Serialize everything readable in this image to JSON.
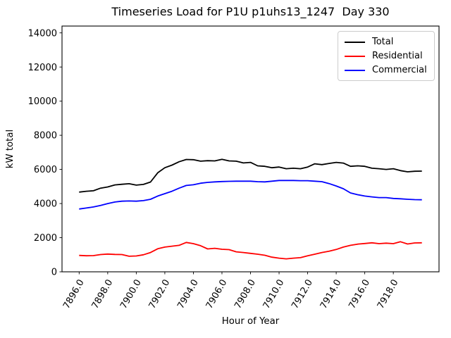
{
  "chart_data": {
    "type": "line",
    "title": "Timeseries Load for P1U p1uhs13_1247  Day 330",
    "xlabel": "Hour of Year",
    "ylabel": "kW total",
    "xlim": [
      7894.8,
      7921.2
    ],
    "ylim": [
      0,
      14400
    ],
    "grid": false,
    "legend_position": "upper right",
    "x_ticks": [
      {
        "value": 7896,
        "label": "7896.0"
      },
      {
        "value": 7898,
        "label": "7898.0"
      },
      {
        "value": 7900,
        "label": "7900.0"
      },
      {
        "value": 7902,
        "label": "7902.0"
      },
      {
        "value": 7904,
        "label": "7904.0"
      },
      {
        "value": 7906,
        "label": "7906.0"
      },
      {
        "value": 7908,
        "label": "7908.0"
      },
      {
        "value": 7910,
        "label": "7910.0"
      },
      {
        "value": 7912,
        "label": "7912.0"
      },
      {
        "value": 7914,
        "label": "7914.0"
      },
      {
        "value": 7916,
        "label": "7916.0"
      },
      {
        "value": 7918,
        "label": "7918.0"
      }
    ],
    "y_ticks": [
      {
        "value": 0,
        "label": "0"
      },
      {
        "value": 2000,
        "label": "2000"
      },
      {
        "value": 4000,
        "label": "4000"
      },
      {
        "value": 6000,
        "label": "6000"
      },
      {
        "value": 8000,
        "label": "8000"
      },
      {
        "value": 10000,
        "label": "10000"
      },
      {
        "value": 12000,
        "label": "12000"
      },
      {
        "value": 14000,
        "label": "14000"
      }
    ],
    "x": [
      7896,
      7896.5,
      7897,
      7897.5,
      7898,
      7898.5,
      7899,
      7899.5,
      7900,
      7900.5,
      7901,
      7901.5,
      7902,
      7902.5,
      7903,
      7903.5,
      7904,
      7904.5,
      7905,
      7905.5,
      7906,
      7906.5,
      7907,
      7907.5,
      7908,
      7908.5,
      7909,
      7909.5,
      7910,
      7910.5,
      7911,
      7911.5,
      7912,
      7912.5,
      7913,
      7913.5,
      7914,
      7914.5,
      7915,
      7915.5,
      7916,
      7916.5,
      7917,
      7917.5,
      7918,
      7918.5,
      7919,
      7919.5,
      7920
    ],
    "series": [
      {
        "name": "Total",
        "color": "#000000",
        "values": [
          4670,
          4720,
          4750,
          4900,
          4970,
          5090,
          5130,
          5160,
          5080,
          5120,
          5260,
          5800,
          6100,
          6250,
          6450,
          6580,
          6570,
          6480,
          6510,
          6500,
          6590,
          6500,
          6480,
          6380,
          6410,
          6210,
          6180,
          6100,
          6140,
          6040,
          6070,
          6040,
          6140,
          6330,
          6280,
          6350,
          6410,
          6370,
          6180,
          6210,
          6180,
          6070,
          6040,
          6000,
          6040,
          5930,
          5860,
          5890,
          5900
        ]
      },
      {
        "name": "Residential",
        "color": "#ff0000",
        "values": [
          960,
          940,
          950,
          1010,
          1040,
          1020,
          1010,
          910,
          930,
          1000,
          1130,
          1350,
          1450,
          1500,
          1550,
          1720,
          1650,
          1530,
          1340,
          1380,
          1320,
          1300,
          1170,
          1130,
          1080,
          1030,
          970,
          860,
          800,
          760,
          800,
          830,
          940,
          1030,
          1130,
          1210,
          1310,
          1450,
          1550,
          1620,
          1660,
          1700,
          1650,
          1680,
          1650,
          1760,
          1630,
          1690,
          1700
        ]
      },
      {
        "name": "Commercial",
        "color": "#0000ff",
        "values": [
          3680,
          3740,
          3800,
          3890,
          4000,
          4090,
          4140,
          4150,
          4140,
          4170,
          4250,
          4440,
          4580,
          4720,
          4900,
          5060,
          5100,
          5190,
          5240,
          5270,
          5290,
          5300,
          5310,
          5310,
          5310,
          5280,
          5270,
          5310,
          5350,
          5350,
          5350,
          5340,
          5340,
          5310,
          5280,
          5170,
          5030,
          4870,
          4620,
          4520,
          4440,
          4390,
          4350,
          4350,
          4300,
          4280,
          4250,
          4230,
          4220
        ]
      }
    ]
  }
}
